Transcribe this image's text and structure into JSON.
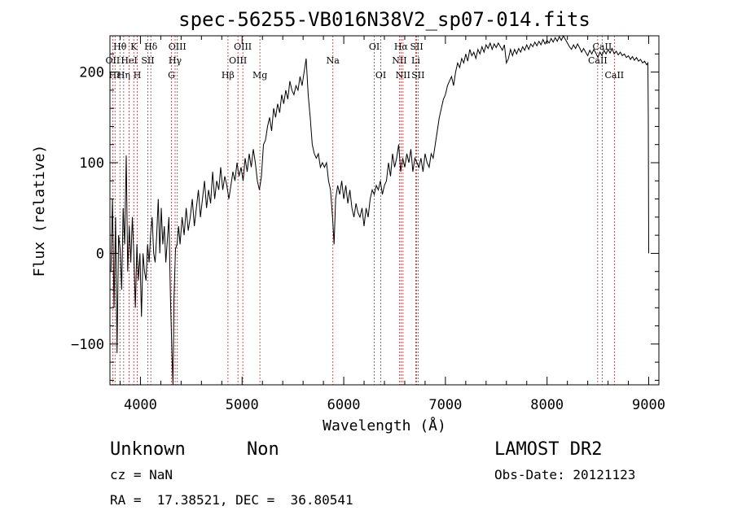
{
  "chart_data": {
    "type": "line",
    "title": "spec-56255-VB016N38V2_sp07-014.fits",
    "xlabel": "Wavelength (Å)",
    "ylabel": "Flux (relative)",
    "xlim": [
      3700,
      9100
    ],
    "ylim": [
      -145,
      240
    ],
    "xticks": [
      {
        "v": 4000,
        "label": "4000"
      },
      {
        "v": 5000,
        "label": "5000"
      },
      {
        "v": 6000,
        "label": "6000"
      },
      {
        "v": 7000,
        "label": "7000"
      },
      {
        "v": 8000,
        "label": "8000"
      },
      {
        "v": 9000,
        "label": "9000"
      }
    ],
    "yticks": [
      {
        "v": -100,
        "label": "−100"
      },
      {
        "v": 0,
        "label": "0"
      },
      {
        "v": 100,
        "label": "100"
      },
      {
        "v": 200,
        "label": "200"
      }
    ],
    "grid": false,
    "spectrum": [
      [
        3710,
        -20
      ],
      [
        3725,
        60
      ],
      [
        3740,
        -60
      ],
      [
        3755,
        40
      ],
      [
        3770,
        -110
      ],
      [
        3785,
        20
      ],
      [
        3800,
        5
      ],
      [
        3815,
        -40
      ],
      [
        3830,
        50
      ],
      [
        3845,
        10
      ],
      [
        3860,
        108
      ],
      [
        3875,
        -20
      ],
      [
        3890,
        30
      ],
      [
        3905,
        -10
      ],
      [
        3920,
        40
      ],
      [
        3935,
        0
      ],
      [
        3950,
        -60
      ],
      [
        3965,
        10
      ],
      [
        3980,
        -30
      ],
      [
        3995,
        0
      ],
      [
        4010,
        -70
      ],
      [
        4025,
        0
      ],
      [
        4040,
        -20
      ],
      [
        4055,
        -30
      ],
      [
        4070,
        10
      ],
      [
        4085,
        -10
      ],
      [
        4100,
        20
      ],
      [
        4115,
        40
      ],
      [
        4130,
        0
      ],
      [
        4145,
        -10
      ],
      [
        4160,
        20
      ],
      [
        4175,
        60
      ],
      [
        4190,
        0
      ],
      [
        4205,
        50
      ],
      [
        4220,
        10
      ],
      [
        4235,
        30
      ],
      [
        4250,
        -10
      ],
      [
        4265,
        15
      ],
      [
        4280,
        40
      ],
      [
        4295,
        -50
      ],
      [
        4310,
        -110
      ],
      [
        4320,
        -145
      ],
      [
        4330,
        -50
      ],
      [
        4345,
        5
      ],
      [
        4360,
        10
      ],
      [
        4375,
        30
      ],
      [
        4390,
        10
      ],
      [
        4410,
        40
      ],
      [
        4430,
        20
      ],
      [
        4450,
        50
      ],
      [
        4470,
        25
      ],
      [
        4490,
        40
      ],
      [
        4510,
        60
      ],
      [
        4530,
        30
      ],
      [
        4550,
        50
      ],
      [
        4570,
        70
      ],
      [
        4590,
        40
      ],
      [
        4610,
        60
      ],
      [
        4630,
        80
      ],
      [
        4650,
        50
      ],
      [
        4670,
        70
      ],
      [
        4690,
        55
      ],
      [
        4710,
        90
      ],
      [
        4730,
        60
      ],
      [
        4750,
        80
      ],
      [
        4770,
        70
      ],
      [
        4790,
        95
      ],
      [
        4810,
        70
      ],
      [
        4830,
        85
      ],
      [
        4850,
        75
      ],
      [
        4870,
        60
      ],
      [
        4890,
        75
      ],
      [
        4910,
        90
      ],
      [
        4930,
        80
      ],
      [
        4950,
        100
      ],
      [
        4970,
        85
      ],
      [
        4990,
        95
      ],
      [
        5010,
        80
      ],
      [
        5030,
        105
      ],
      [
        5050,
        90
      ],
      [
        5070,
        110
      ],
      [
        5090,
        95
      ],
      [
        5110,
        115
      ],
      [
        5130,
        100
      ],
      [
        5150,
        80
      ],
      [
        5170,
        70
      ],
      [
        5190,
        85
      ],
      [
        5210,
        120
      ],
      [
        5230,
        125
      ],
      [
        5250,
        140
      ],
      [
        5270,
        150
      ],
      [
        5290,
        135
      ],
      [
        5310,
        160
      ],
      [
        5330,
        150
      ],
      [
        5350,
        165
      ],
      [
        5370,
        155
      ],
      [
        5390,
        175
      ],
      [
        5410,
        165
      ],
      [
        5430,
        180
      ],
      [
        5450,
        170
      ],
      [
        5470,
        190
      ],
      [
        5490,
        180
      ],
      [
        5510,
        175
      ],
      [
        5530,
        185
      ],
      [
        5550,
        180
      ],
      [
        5570,
        195
      ],
      [
        5590,
        185
      ],
      [
        5610,
        200
      ],
      [
        5630,
        215
      ],
      [
        5650,
        175
      ],
      [
        5670,
        150
      ],
      [
        5690,
        120
      ],
      [
        5710,
        110
      ],
      [
        5730,
        105
      ],
      [
        5750,
        110
      ],
      [
        5770,
        95
      ],
      [
        5790,
        100
      ],
      [
        5810,
        95
      ],
      [
        5830,
        100
      ],
      [
        5850,
        80
      ],
      [
        5870,
        70
      ],
      [
        5890,
        40
      ],
      [
        5905,
        10
      ],
      [
        5920,
        60
      ],
      [
        5940,
        75
      ],
      [
        5960,
        65
      ],
      [
        5980,
        80
      ],
      [
        6000,
        60
      ],
      [
        6020,
        75
      ],
      [
        6040,
        55
      ],
      [
        6060,
        70
      ],
      [
        6080,
        50
      ],
      [
        6100,
        40
      ],
      [
        6120,
        55
      ],
      [
        6140,
        45
      ],
      [
        6160,
        40
      ],
      [
        6180,
        50
      ],
      [
        6200,
        30
      ],
      [
        6220,
        50
      ],
      [
        6240,
        40
      ],
      [
        6260,
        60
      ],
      [
        6280,
        70
      ],
      [
        6300,
        65
      ],
      [
        6320,
        75
      ],
      [
        6340,
        70
      ],
      [
        6360,
        80
      ],
      [
        6380,
        65
      ],
      [
        6400,
        75
      ],
      [
        6420,
        80
      ],
      [
        6440,
        100
      ],
      [
        6460,
        85
      ],
      [
        6480,
        110
      ],
      [
        6500,
        95
      ],
      [
        6520,
        105
      ],
      [
        6540,
        120
      ],
      [
        6560,
        90
      ],
      [
        6580,
        105
      ],
      [
        6600,
        95
      ],
      [
        6620,
        110
      ],
      [
        6640,
        100
      ],
      [
        6660,
        115
      ],
      [
        6680,
        90
      ],
      [
        6700,
        105
      ],
      [
        6720,
        100
      ],
      [
        6740,
        95
      ],
      [
        6760,
        105
      ],
      [
        6780,
        90
      ],
      [
        6800,
        110
      ],
      [
        6820,
        100
      ],
      [
        6840,
        95
      ],
      [
        6860,
        110
      ],
      [
        6880,
        105
      ],
      [
        6900,
        120
      ],
      [
        6920,
        135
      ],
      [
        6940,
        150
      ],
      [
        6960,
        160
      ],
      [
        6980,
        170
      ],
      [
        7000,
        175
      ],
      [
        7020,
        185
      ],
      [
        7040,
        190
      ],
      [
        7060,
        195
      ],
      [
        7080,
        185
      ],
      [
        7100,
        200
      ],
      [
        7120,
        210
      ],
      [
        7140,
        205
      ],
      [
        7160,
        215
      ],
      [
        7180,
        210
      ],
      [
        7200,
        220
      ],
      [
        7220,
        212
      ],
      [
        7240,
        225
      ],
      [
        7260,
        218
      ],
      [
        7280,
        222
      ],
      [
        7300,
        215
      ],
      [
        7320,
        225
      ],
      [
        7340,
        220
      ],
      [
        7360,
        228
      ],
      [
        7380,
        222
      ],
      [
        7400,
        230
      ],
      [
        7420,
        226
      ],
      [
        7440,
        232
      ],
      [
        7460,
        225
      ],
      [
        7480,
        231
      ],
      [
        7500,
        227
      ],
      [
        7520,
        232
      ],
      [
        7540,
        228
      ],
      [
        7560,
        224
      ],
      [
        7580,
        230
      ],
      [
        7600,
        210
      ],
      [
        7620,
        215
      ],
      [
        7640,
        225
      ],
      [
        7660,
        218
      ],
      [
        7680,
        225
      ],
      [
        7700,
        220
      ],
      [
        7720,
        226
      ],
      [
        7740,
        222
      ],
      [
        7760,
        228
      ],
      [
        7780,
        224
      ],
      [
        7800,
        230
      ],
      [
        7820,
        225
      ],
      [
        7840,
        231
      ],
      [
        7860,
        228
      ],
      [
        7880,
        233
      ],
      [
        7900,
        229
      ],
      [
        7920,
        234
      ],
      [
        7940,
        230
      ],
      [
        7960,
        236
      ],
      [
        7980,
        231
      ],
      [
        8000,
        235
      ],
      [
        8020,
        232
      ],
      [
        8040,
        237
      ],
      [
        8060,
        233
      ],
      [
        8080,
        238
      ],
      [
        8100,
        234
      ],
      [
        8120,
        239
      ],
      [
        8140,
        235
      ],
      [
        8160,
        240
      ],
      [
        8180,
        236
      ],
      [
        8200,
        232
      ],
      [
        8220,
        228
      ],
      [
        8240,
        225
      ],
      [
        8260,
        230
      ],
      [
        8280,
        226
      ],
      [
        8300,
        231
      ],
      [
        8320,
        227
      ],
      [
        8340,
        222
      ],
      [
        8360,
        226
      ],
      [
        8380,
        222
      ],
      [
        8400,
        218
      ],
      [
        8420,
        224
      ],
      [
        8440,
        220
      ],
      [
        8460,
        225
      ],
      [
        8480,
        221
      ],
      [
        8500,
        216
      ],
      [
        8520,
        222
      ],
      [
        8540,
        218
      ],
      [
        8560,
        224
      ],
      [
        8580,
        220
      ],
      [
        8600,
        225
      ],
      [
        8620,
        221
      ],
      [
        8640,
        226
      ],
      [
        8660,
        220
      ],
      [
        8680,
        223
      ],
      [
        8700,
        219
      ],
      [
        8720,
        222
      ],
      [
        8740,
        218
      ],
      [
        8760,
        220
      ],
      [
        8780,
        216
      ],
      [
        8800,
        218
      ],
      [
        8820,
        214
      ],
      [
        8840,
        217
      ],
      [
        8860,
        213
      ],
      [
        8880,
        216
      ],
      [
        8900,
        212
      ],
      [
        8920,
        214
      ],
      [
        8940,
        210
      ],
      [
        8960,
        212
      ],
      [
        8980,
        208
      ],
      [
        8992,
        210
      ],
      [
        8996,
        150
      ],
      [
        9000,
        0
      ]
    ],
    "line_markers": [
      {
        "name": "Hθ",
        "wl": 3798,
        "row": 0
      },
      {
        "name": "OII",
        "wl": 3727,
        "row": 1
      },
      {
        "name": "Hε",
        "wl": 3750,
        "row": 2
      },
      {
        "name": "K",
        "wl": 3934,
        "row": 0
      },
      {
        "name": "HeI",
        "wl": 3889,
        "row": 1
      },
      {
        "name": "Hη",
        "wl": 3835,
        "row": 2
      },
      {
        "name": "Hδ",
        "wl": 4102,
        "row": 0
      },
      {
        "name": "SII",
        "wl": 4072,
        "row": 1
      },
      {
        "name": "H",
        "wl": 3969,
        "row": 2
      },
      {
        "name": "OIII",
        "wl": 4363,
        "row": 0
      },
      {
        "name": "Hγ",
        "wl": 4341,
        "row": 1
      },
      {
        "name": "G",
        "wl": 4305,
        "row": 2
      },
      {
        "name": "Hβ",
        "wl": 4861,
        "row": 2
      },
      {
        "name": "OIII",
        "wl": 5007,
        "row": 0
      },
      {
        "name": "OIII",
        "wl": 4959,
        "row": 1
      },
      {
        "name": "Mg",
        "wl": 5175,
        "row": 2
      },
      {
        "name": "Na",
        "wl": 5893,
        "row": 1
      },
      {
        "name": "OI",
        "wl": 6300,
        "row": 0
      },
      {
        "name": "OI",
        "wl": 6364,
        "row": 2
      },
      {
        "name": "Hα",
        "wl": 6563,
        "row": 0
      },
      {
        "name": "NII",
        "wl": 6548,
        "row": 1
      },
      {
        "name": "NII",
        "wl": 6583,
        "row": 2
      },
      {
        "name": "SII",
        "wl": 6717,
        "row": 0
      },
      {
        "name": "Li",
        "wl": 6708,
        "row": 1
      },
      {
        "name": "SII",
        "wl": 6731,
        "row": 2
      },
      {
        "name": "CaII",
        "wl": 8542,
        "row": 0
      },
      {
        "name": "CaII",
        "wl": 8498,
        "row": 1
      },
      {
        "name": "CaII",
        "wl": 8662,
        "row": 2
      }
    ]
  },
  "info": {
    "object_class": "Unknown",
    "object_subclass": "Non",
    "survey": "LAMOST DR2",
    "redshift": "cz = NaN",
    "obs_date": "Obs-Date: 20121123",
    "coords": "RA =  17.38521, DEC =  36.80541"
  }
}
